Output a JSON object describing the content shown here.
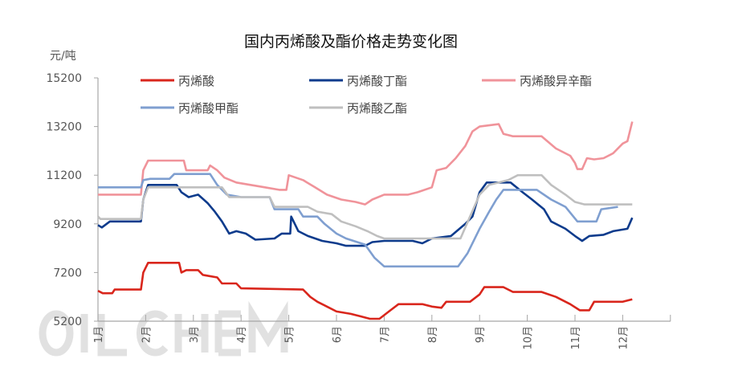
{
  "chart_data": {
    "type": "line",
    "title": "国内丙烯酸及酯价格走势变化图",
    "ylabel": "元/吨",
    "xlabel": "",
    "ylim": [
      5200,
      15200
    ],
    "yticks": [
      5200,
      7200,
      9200,
      11200,
      13200,
      15200
    ],
    "ytick_labels": [
      "5200",
      "7200",
      "9200",
      "11200",
      "13200",
      "15200"
    ],
    "xtick_labels": [
      "1月",
      "2月",
      "3月",
      "4月",
      "5月",
      "6月",
      "7月",
      "8月",
      "9月",
      "10月",
      "11月",
      "12月"
    ],
    "x_unit": "months elapsed since start of 1月",
    "xlim": [
      0,
      12
    ],
    "grid": false,
    "legend_position": "top",
    "watermark": "OILCHEM",
    "series": [
      {
        "name": "丙烯酸",
        "color": "#d9261c",
        "points": [
          [
            0,
            6450
          ],
          [
            0.1,
            6350
          ],
          [
            0.3,
            6350
          ],
          [
            0.35,
            6500
          ],
          [
            0.9,
            6500
          ],
          [
            0.95,
            7200
          ],
          [
            1.05,
            7600
          ],
          [
            1.7,
            7600
          ],
          [
            1.75,
            7200
          ],
          [
            1.85,
            7300
          ],
          [
            2.1,
            7300
          ],
          [
            2.2,
            7100
          ],
          [
            2.5,
            7000
          ],
          [
            2.6,
            6750
          ],
          [
            2.9,
            6750
          ],
          [
            3.0,
            6550
          ],
          [
            4.3,
            6500
          ],
          [
            4.45,
            6200
          ],
          [
            4.6,
            6000
          ],
          [
            4.8,
            5800
          ],
          [
            5.0,
            5600
          ],
          [
            5.3,
            5500
          ],
          [
            5.5,
            5400
          ],
          [
            5.7,
            5300
          ],
          [
            5.9,
            5300
          ],
          [
            6.1,
            5600
          ],
          [
            6.3,
            5900
          ],
          [
            6.8,
            5900
          ],
          [
            7.0,
            5800
          ],
          [
            7.2,
            5750
          ],
          [
            7.3,
            6000
          ],
          [
            7.8,
            6000
          ],
          [
            8.0,
            6300
          ],
          [
            8.1,
            6600
          ],
          [
            8.5,
            6600
          ],
          [
            8.7,
            6400
          ],
          [
            9.3,
            6400
          ],
          [
            9.6,
            6200
          ],
          [
            9.9,
            5900
          ],
          [
            10.1,
            5650
          ],
          [
            10.3,
            5650
          ],
          [
            10.4,
            6000
          ],
          [
            11.0,
            6000
          ],
          [
            11.2,
            6100
          ]
        ]
      },
      {
        "name": "丙烯酸丁酯",
        "color": "#0d3b8c",
        "points": [
          [
            0,
            9150
          ],
          [
            0.08,
            9050
          ],
          [
            0.25,
            9300
          ],
          [
            0.9,
            9300
          ],
          [
            0.95,
            10200
          ],
          [
            1.05,
            10800
          ],
          [
            1.65,
            10800
          ],
          [
            1.75,
            10500
          ],
          [
            1.9,
            10300
          ],
          [
            2.1,
            10400
          ],
          [
            2.3,
            10050
          ],
          [
            2.45,
            9700
          ],
          [
            2.6,
            9300
          ],
          [
            2.75,
            8800
          ],
          [
            2.9,
            8900
          ],
          [
            3.1,
            8800
          ],
          [
            3.3,
            8550
          ],
          [
            3.7,
            8600
          ],
          [
            3.85,
            8800
          ],
          [
            4.03,
            8800
          ],
          [
            4.05,
            9500
          ],
          [
            4.2,
            8900
          ],
          [
            4.4,
            8700
          ],
          [
            4.7,
            8500
          ],
          [
            5.0,
            8400
          ],
          [
            5.2,
            8300
          ],
          [
            5.6,
            8300
          ],
          [
            5.75,
            8450
          ],
          [
            6.0,
            8500
          ],
          [
            6.6,
            8500
          ],
          [
            6.8,
            8400
          ],
          [
            7.0,
            8600
          ],
          [
            7.4,
            8700
          ],
          [
            7.7,
            9200
          ],
          [
            7.85,
            9500
          ],
          [
            8.0,
            10500
          ],
          [
            8.15,
            10900
          ],
          [
            8.65,
            10900
          ],
          [
            8.9,
            10500
          ],
          [
            9.1,
            10200
          ],
          [
            9.35,
            9800
          ],
          [
            9.5,
            9300
          ],
          [
            9.8,
            9000
          ],
          [
            10.0,
            8700
          ],
          [
            10.15,
            8500
          ],
          [
            10.3,
            8700
          ],
          [
            10.6,
            8750
          ],
          [
            10.8,
            8900
          ],
          [
            11.1,
            9000
          ],
          [
            11.2,
            9450
          ]
        ]
      },
      {
        "name": "丙烯酸异辛酯",
        "color": "#f0939a",
        "points": [
          [
            0,
            10400
          ],
          [
            0.9,
            10400
          ],
          [
            0.95,
            11400
          ],
          [
            1.05,
            11800
          ],
          [
            1.8,
            11800
          ],
          [
            1.85,
            11400
          ],
          [
            2.3,
            11400
          ],
          [
            2.35,
            11600
          ],
          [
            2.5,
            11400
          ],
          [
            2.65,
            11100
          ],
          [
            2.9,
            10900
          ],
          [
            3.2,
            10800
          ],
          [
            3.5,
            10700
          ],
          [
            3.8,
            10600
          ],
          [
            3.95,
            10600
          ],
          [
            4.0,
            11200
          ],
          [
            4.3,
            11000
          ],
          [
            4.55,
            10700
          ],
          [
            4.8,
            10400
          ],
          [
            5.1,
            10200
          ],
          [
            5.4,
            10100
          ],
          [
            5.6,
            10000
          ],
          [
            5.75,
            10200
          ],
          [
            6.0,
            10400
          ],
          [
            6.5,
            10400
          ],
          [
            6.7,
            10500
          ],
          [
            7.0,
            10700
          ],
          [
            7.1,
            11400
          ],
          [
            7.3,
            11500
          ],
          [
            7.5,
            11900
          ],
          [
            7.7,
            12400
          ],
          [
            7.85,
            13000
          ],
          [
            8.0,
            13200
          ],
          [
            8.4,
            13300
          ],
          [
            8.5,
            12900
          ],
          [
            8.7,
            12800
          ],
          [
            9.3,
            12800
          ],
          [
            9.6,
            12300
          ],
          [
            9.9,
            12000
          ],
          [
            10.0,
            11700
          ],
          [
            10.05,
            11450
          ],
          [
            10.15,
            11450
          ],
          [
            10.25,
            11900
          ],
          [
            10.4,
            11850
          ],
          [
            10.6,
            11900
          ],
          [
            10.8,
            12100
          ],
          [
            11.0,
            12500
          ],
          [
            11.1,
            12600
          ],
          [
            11.2,
            13400
          ]
        ]
      },
      {
        "name": "丙烯酸甲酯",
        "color": "#7f9fd0",
        "points": [
          [
            0,
            10700
          ],
          [
            0.9,
            10700
          ],
          [
            0.95,
            11000
          ],
          [
            1.1,
            11050
          ],
          [
            1.5,
            11050
          ],
          [
            1.6,
            11250
          ],
          [
            2.35,
            11250
          ],
          [
            2.5,
            10800
          ],
          [
            2.7,
            10400
          ],
          [
            3.0,
            10300
          ],
          [
            3.6,
            10300
          ],
          [
            3.7,
            9800
          ],
          [
            4.2,
            9800
          ],
          [
            4.3,
            9500
          ],
          [
            4.6,
            9500
          ],
          [
            4.75,
            9200
          ],
          [
            5.0,
            8800
          ],
          [
            5.2,
            8600
          ],
          [
            5.6,
            8350
          ],
          [
            5.8,
            7800
          ],
          [
            6.0,
            7450
          ],
          [
            7.55,
            7450
          ],
          [
            7.75,
            8000
          ],
          [
            8.0,
            9000
          ],
          [
            8.2,
            9700
          ],
          [
            8.35,
            10200
          ],
          [
            8.5,
            10600
          ],
          [
            9.2,
            10600
          ],
          [
            9.5,
            10200
          ],
          [
            9.8,
            9900
          ],
          [
            10.05,
            9300
          ],
          [
            10.45,
            9300
          ],
          [
            10.55,
            9800
          ],
          [
            10.9,
            9900
          ]
        ]
      },
      {
        "name": "丙烯酸乙酯",
        "color": "#bfbfbf",
        "points": [
          [
            0,
            9500
          ],
          [
            0.05,
            9400
          ],
          [
            0.9,
            9400
          ],
          [
            0.95,
            10200
          ],
          [
            1.05,
            10700
          ],
          [
            2.6,
            10700
          ],
          [
            2.75,
            10300
          ],
          [
            3.6,
            10300
          ],
          [
            3.7,
            9900
          ],
          [
            4.4,
            9900
          ],
          [
            4.6,
            9700
          ],
          [
            4.9,
            9600
          ],
          [
            5.1,
            9300
          ],
          [
            5.4,
            9100
          ],
          [
            5.65,
            8900
          ],
          [
            5.85,
            8700
          ],
          [
            6.0,
            8600
          ],
          [
            7.6,
            8600
          ],
          [
            7.8,
            9500
          ],
          [
            8.0,
            10400
          ],
          [
            8.2,
            10800
          ],
          [
            8.6,
            11000
          ],
          [
            8.8,
            11200
          ],
          [
            9.3,
            11200
          ],
          [
            9.5,
            10800
          ],
          [
            9.8,
            10400
          ],
          [
            10.0,
            10100
          ],
          [
            10.2,
            10000
          ],
          [
            11.2,
            10000
          ]
        ]
      }
    ]
  }
}
